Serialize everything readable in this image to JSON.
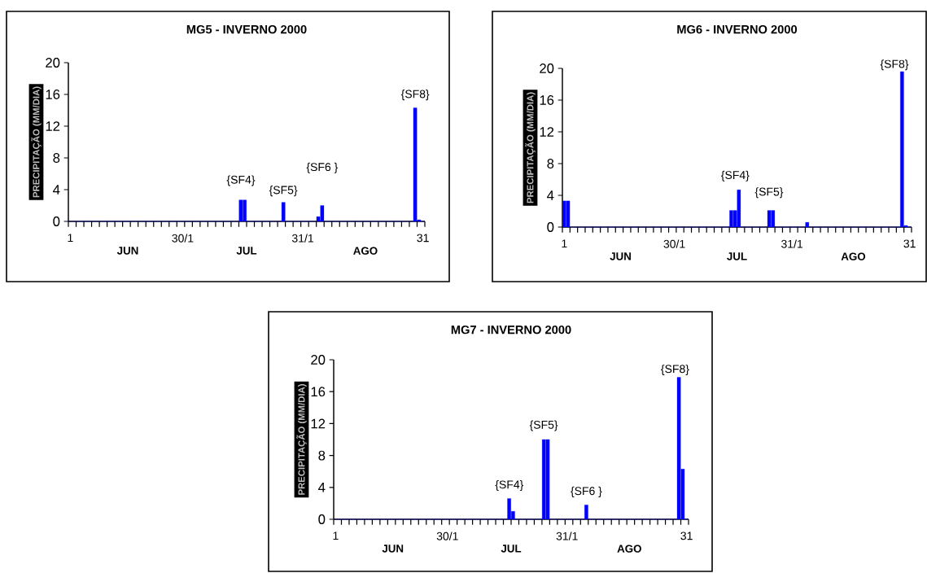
{
  "chart_data": [
    {
      "type": "bar",
      "title": "MG5 - INVERNO 2000",
      "ylabel": "PRECIPITAÇÃO (MM/DIA)",
      "color": "#0000ff",
      "categories": [
        "1",
        null,
        null,
        null,
        null,
        null,
        null,
        null,
        null,
        null,
        null,
        null,
        null,
        null,
        null,
        null,
        null,
        null,
        null,
        null,
        null,
        null,
        null,
        null,
        null,
        null,
        null,
        null,
        null,
        "30/1",
        null,
        null,
        null,
        null,
        null,
        null,
        null,
        null,
        null,
        null,
        null,
        null,
        null,
        null,
        null,
        null,
        null,
        null,
        null,
        null,
        null,
        null,
        null,
        null,
        null,
        null,
        null,
        null,
        null,
        null,
        "31/1",
        null,
        null,
        null,
        null,
        null,
        null,
        null,
        null,
        null,
        null,
        null,
        null,
        null,
        null,
        null,
        null,
        null,
        null,
        null,
        null,
        null,
        null,
        null,
        null,
        null,
        null,
        null,
        null,
        null,
        null,
        "31"
      ],
      "values": [
        0,
        0,
        0,
        0,
        0,
        0,
        0,
        0,
        0,
        0,
        0,
        0,
        0,
        0,
        0,
        0,
        0,
        0,
        0,
        0,
        0,
        0,
        0,
        0,
        0,
        0,
        0,
        0,
        0,
        0,
        0,
        0,
        0,
        0,
        0,
        0,
        0,
        0,
        0,
        0,
        0,
        0,
        0,
        0,
        2.7,
        2.7,
        0,
        0,
        0,
        0,
        0,
        0,
        0,
        0,
        0,
        2.4,
        0,
        0,
        0,
        0,
        0,
        0,
        0,
        0,
        0.6,
        2.0,
        0,
        0,
        0,
        0,
        0,
        0,
        0,
        0,
        0,
        0,
        0,
        0,
        0,
        0,
        0,
        0,
        0,
        0,
        0,
        0,
        0,
        0,
        0,
        14.3,
        0.2,
        0
      ],
      "ylim": [
        0,
        20
      ],
      "yticks": [
        0,
        4,
        8,
        12,
        16,
        20
      ],
      "annotations": [
        "{SF4}",
        "{SF5}",
        "{SF6 }",
        "{SF8}",
        "JUN",
        "JUL",
        "AGO"
      ]
    },
    {
      "type": "bar",
      "title": "MG6 - INVERNO 2000",
      "ylabel": "PRECIPITAÇÃO (MM/DIA)",
      "color": "#0000ff",
      "categories": [
        "1",
        null,
        null,
        null,
        null,
        null,
        null,
        null,
        null,
        null,
        null,
        null,
        null,
        null,
        null,
        null,
        null,
        null,
        null,
        null,
        null,
        null,
        null,
        null,
        null,
        null,
        null,
        null,
        null,
        "30/1",
        null,
        null,
        null,
        null,
        null,
        null,
        null,
        null,
        null,
        null,
        null,
        null,
        null,
        null,
        null,
        null,
        null,
        null,
        null,
        null,
        null,
        null,
        null,
        null,
        null,
        null,
        null,
        null,
        null,
        null,
        "31/1",
        null,
        null,
        null,
        null,
        null,
        null,
        null,
        null,
        null,
        null,
        null,
        null,
        null,
        null,
        null,
        null,
        null,
        null,
        null,
        null,
        null,
        null,
        null,
        null,
        null,
        null,
        null,
        null,
        null,
        null,
        "31"
      ],
      "values": [
        3.3,
        3.3,
        0,
        0,
        0,
        0,
        0,
        0,
        0,
        0,
        0,
        0,
        0,
        0,
        0,
        0,
        0,
        0,
        0,
        0,
        0,
        0,
        0,
        0,
        0,
        0,
        0,
        0,
        0,
        0,
        0,
        0,
        0,
        0,
        0,
        0,
        0,
        0,
        0,
        0,
        0,
        0,
        0,
        0,
        2.1,
        2.1,
        4.7,
        0,
        0,
        0,
        0,
        0,
        0,
        0,
        2.1,
        2.1,
        0,
        0,
        0,
        0,
        0,
        0,
        0,
        0,
        0.6,
        0,
        0,
        0,
        0,
        0,
        0,
        0,
        0,
        0,
        0,
        0,
        0,
        0,
        0,
        0,
        0,
        0,
        0,
        0,
        0,
        0,
        0,
        0,
        0,
        19.6,
        0.2,
        0
      ],
      "ylim": [
        0,
        20
      ],
      "yticks": [
        0,
        4,
        8,
        12,
        16,
        20
      ],
      "annotations": [
        "{SF4}",
        "{SF5}",
        "{SF8}",
        "JUN",
        "JUL",
        "AGO"
      ]
    },
    {
      "type": "bar",
      "title": "MG7 - INVERNO 2000",
      "ylabel": "PRECIPITAÇÃO (MM/DIA)",
      "color": "#0000ff",
      "categories": [
        "1",
        null,
        null,
        null,
        null,
        null,
        null,
        null,
        null,
        null,
        null,
        null,
        null,
        null,
        null,
        null,
        null,
        null,
        null,
        null,
        null,
        null,
        null,
        null,
        null,
        null,
        null,
        null,
        null,
        "30/1",
        null,
        null,
        null,
        null,
        null,
        null,
        null,
        null,
        null,
        null,
        null,
        null,
        null,
        null,
        null,
        null,
        null,
        null,
        null,
        null,
        null,
        null,
        null,
        null,
        null,
        null,
        null,
        null,
        null,
        null,
        "31/1",
        null,
        null,
        null,
        null,
        null,
        null,
        null,
        null,
        null,
        null,
        null,
        null,
        null,
        null,
        null,
        null,
        null,
        null,
        null,
        null,
        null,
        null,
        null,
        null,
        null,
        null,
        null,
        null,
        null,
        null,
        "31"
      ],
      "values": [
        0,
        0,
        0,
        0,
        0,
        0,
        0,
        0,
        0,
        0,
        0,
        0,
        0,
        0,
        0,
        0,
        0,
        0,
        0,
        0,
        0,
        0,
        0,
        0,
        0,
        0,
        0,
        0,
        0,
        0,
        0,
        0,
        0,
        0,
        0,
        0,
        0,
        0,
        0,
        0,
        0,
        0,
        0,
        0,
        0,
        2.6,
        1.0,
        0,
        0,
        0,
        0,
        0,
        0,
        0,
        10.0,
        10.0,
        0,
        0,
        0,
        0,
        0,
        0,
        0,
        0,
        0,
        1.8,
        0,
        0,
        0,
        0,
        0,
        0,
        0,
        0,
        0,
        0,
        0,
        0,
        0,
        0,
        0,
        0,
        0,
        0,
        0,
        0,
        0,
        0,
        0,
        17.8,
        6.3,
        0
      ],
      "ylim": [
        0,
        20
      ],
      "yticks": [
        0,
        4,
        8,
        12,
        16,
        20
      ],
      "annotations": [
        "{SF4}",
        "{SF5}",
        "{SF6 }",
        "{SF8}",
        "JUN",
        "JUL",
        "AGO"
      ]
    }
  ]
}
